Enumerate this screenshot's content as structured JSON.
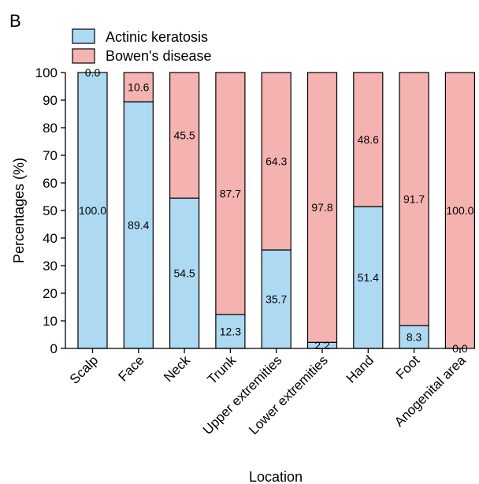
{
  "panel_label": "B",
  "colors": {
    "actinic": "#aed9f2",
    "bowen": "#f4b3b1",
    "stroke": "#000000"
  },
  "chart_data": {
    "type": "bar",
    "stacked": true,
    "percent_stacked": true,
    "title": "",
    "xlabel": "Location",
    "ylabel": "Percentages (%)",
    "ylim": [
      0,
      100
    ],
    "yticks": [
      0,
      10,
      20,
      30,
      40,
      50,
      60,
      70,
      80,
      90,
      100
    ],
    "grid": false,
    "legend_position": "top-left",
    "categories": [
      "Scalp",
      "Face",
      "Neck",
      "Trunk",
      "Upper extremities",
      "Lower extremities",
      "Hand",
      "Foot",
      "Anogenital area"
    ],
    "series": [
      {
        "name": "Actinic keratosis",
        "color": "#aed9f2",
        "values": [
          100.0,
          89.4,
          54.5,
          12.3,
          35.7,
          2.2,
          51.4,
          8.3,
          0.0
        ],
        "labels": [
          "100.0",
          "89.4",
          "54.5",
          "12.3",
          "35.7",
          "2.2",
          "51.4",
          "8.3",
          "0.0"
        ]
      },
      {
        "name": "Bowen's disease",
        "color": "#f4b3b1",
        "values": [
          0.0,
          10.6,
          45.5,
          87.7,
          64.3,
          97.8,
          48.6,
          91.7,
          100.0
        ],
        "labels": [
          "0.0",
          "10.6",
          "45.5",
          "87.7",
          "64.3",
          "97.8",
          "48.6",
          "91.7",
          "100.0"
        ]
      }
    ]
  }
}
